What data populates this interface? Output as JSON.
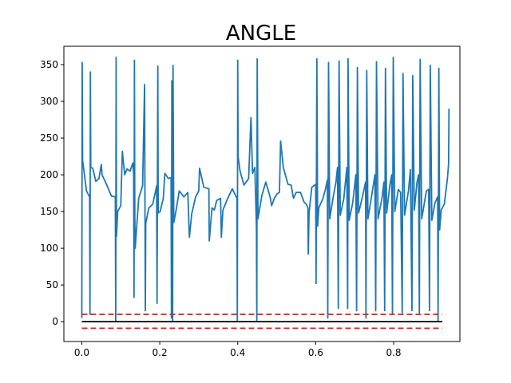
{
  "chart_data": {
    "type": "line",
    "title": "ANGLE",
    "xlabel": "",
    "ylabel": "",
    "xlim": [
      -0.046,
      0.97
    ],
    "ylim": [
      -27,
      375
    ],
    "xticks": [
      {
        "value": 0.0,
        "label": "0.0"
      },
      {
        "value": 0.2,
        "label": "0.2"
      },
      {
        "value": 0.4,
        "label": "0.4"
      },
      {
        "value": 0.6,
        "label": "0.6"
      },
      {
        "value": 0.8,
        "label": "0.8"
      }
    ],
    "yticks": [
      {
        "value": 0,
        "label": "0"
      },
      {
        "value": 50,
        "label": "50"
      },
      {
        "value": 100,
        "label": "100"
      },
      {
        "value": 150,
        "label": "150"
      },
      {
        "value": 200,
        "label": "200"
      },
      {
        "value": 250,
        "label": "250"
      },
      {
        "value": 300,
        "label": "300"
      },
      {
        "value": 350,
        "label": "350"
      }
    ],
    "grid": false,
    "colors": {
      "series": "#1f77b4",
      "baseline": "#000000",
      "threshold": "#d62728"
    },
    "series": [
      {
        "style": "solid",
        "points": [
          [
            0.0,
            5
          ],
          [
            0.001,
            353
          ],
          [
            0.002,
            220
          ],
          [
            0.012,
            178
          ],
          [
            0.02,
            170
          ],
          [
            0.021,
            10
          ],
          [
            0.022,
            340
          ],
          [
            0.023,
            210
          ],
          [
            0.028,
            209
          ],
          [
            0.036,
            191
          ],
          [
            0.044,
            195
          ],
          [
            0.05,
            214
          ],
          [
            0.052,
            200
          ],
          [
            0.065,
            185
          ],
          [
            0.076,
            171
          ],
          [
            0.086,
            170
          ],
          [
            0.087,
            0
          ],
          [
            0.088,
            360
          ],
          [
            0.089,
            116
          ],
          [
            0.092,
            150
          ],
          [
            0.1,
            158
          ],
          [
            0.104,
            232
          ],
          [
            0.11,
            200
          ],
          [
            0.116,
            208
          ],
          [
            0.124,
            205
          ],
          [
            0.131,
            216
          ],
          [
            0.133,
            200
          ],
          [
            0.134,
            33
          ],
          [
            0.135,
            356
          ],
          [
            0.136,
            140
          ],
          [
            0.137,
            100
          ],
          [
            0.146,
            168
          ],
          [
            0.156,
            185
          ],
          [
            0.161,
            323
          ],
          [
            0.163,
            15
          ],
          [
            0.164,
            134
          ],
          [
            0.172,
            155
          ],
          [
            0.182,
            160
          ],
          [
            0.192,
            185
          ],
          [
            0.193,
            25
          ],
          [
            0.195,
            348
          ],
          [
            0.196,
            148
          ],
          [
            0.201,
            150
          ],
          [
            0.209,
            168
          ],
          [
            0.213,
            202
          ],
          [
            0.222,
            195
          ],
          [
            0.229,
            196
          ],
          [
            0.23,
            5
          ],
          [
            0.231,
            328
          ],
          [
            0.233,
            0
          ],
          [
            0.234,
            349
          ],
          [
            0.236,
            135
          ],
          [
            0.242,
            152
          ],
          [
            0.25,
            178
          ],
          [
            0.262,
            170
          ],
          [
            0.272,
            176
          ],
          [
            0.276,
            115
          ],
          [
            0.282,
            147
          ],
          [
            0.292,
            170
          ],
          [
            0.3,
            178
          ],
          [
            0.302,
            209
          ],
          [
            0.313,
            183
          ],
          [
            0.326,
            181
          ],
          [
            0.327,
            110
          ],
          [
            0.334,
            155
          ],
          [
            0.34,
            152
          ],
          [
            0.346,
            165
          ],
          [
            0.356,
            168
          ],
          [
            0.358,
            115
          ],
          [
            0.362,
            152
          ],
          [
            0.372,
            165
          ],
          [
            0.386,
            181
          ],
          [
            0.398,
            168
          ],
          [
            0.399,
            2
          ],
          [
            0.4,
            356
          ],
          [
            0.401,
            225
          ],
          [
            0.406,
            205
          ],
          [
            0.416,
            186
          ],
          [
            0.428,
            195
          ],
          [
            0.434,
            278
          ],
          [
            0.438,
            202
          ],
          [
            0.444,
            210
          ],
          [
            0.448,
            128
          ],
          [
            0.449,
            2
          ],
          [
            0.45,
            358
          ],
          [
            0.452,
            140
          ],
          [
            0.462,
            172
          ],
          [
            0.472,
            190
          ],
          [
            0.483,
            170
          ],
          [
            0.487,
            158
          ],
          [
            0.494,
            168
          ],
          [
            0.501,
            174
          ],
          [
            0.507,
            176
          ],
          [
            0.51,
            246
          ],
          [
            0.517,
            210
          ],
          [
            0.529,
            187
          ],
          [
            0.537,
            186
          ],
          [
            0.543,
            168
          ],
          [
            0.55,
            176
          ],
          [
            0.561,
            176
          ],
          [
            0.57,
            163
          ],
          [
            0.576,
            160
          ],
          [
            0.58,
            155
          ],
          [
            0.581,
            92
          ],
          [
            0.583,
            148
          ],
          [
            0.59,
            183
          ],
          [
            0.6,
            187
          ],
          [
            0.601,
            52
          ],
          [
            0.603,
            358
          ],
          [
            0.605,
            130
          ],
          [
            0.608,
            155
          ],
          [
            0.618,
            167
          ],
          [
            0.625,
            180
          ],
          [
            0.63,
            193
          ],
          [
            0.631,
            5
          ],
          [
            0.633,
            353
          ],
          [
            0.636,
            140
          ],
          [
            0.645,
            170
          ],
          [
            0.652,
            190
          ],
          [
            0.656,
            210
          ],
          [
            0.658,
            18
          ],
          [
            0.66,
            355
          ],
          [
            0.663,
            145
          ],
          [
            0.672,
            167
          ],
          [
            0.68,
            210
          ],
          [
            0.682,
            18
          ],
          [
            0.683,
            358
          ],
          [
            0.686,
            138
          ],
          [
            0.695,
            162
          ],
          [
            0.703,
            200
          ],
          [
            0.705,
            15
          ],
          [
            0.707,
            346
          ],
          [
            0.71,
            148
          ],
          [
            0.72,
            170
          ],
          [
            0.728,
            190
          ],
          [
            0.729,
            5
          ],
          [
            0.731,
            342
          ],
          [
            0.734,
            140
          ],
          [
            0.745,
            176
          ],
          [
            0.752,
            200
          ],
          [
            0.754,
            15
          ],
          [
            0.756,
            354
          ],
          [
            0.76,
            140
          ],
          [
            0.77,
            168
          ],
          [
            0.775,
            190
          ],
          [
            0.777,
            15
          ],
          [
            0.779,
            345
          ],
          [
            0.782,
            148
          ],
          [
            0.79,
            185
          ],
          [
            0.795,
            200
          ],
          [
            0.797,
            10
          ],
          [
            0.799,
            360
          ],
          [
            0.803,
            150
          ],
          [
            0.812,
            180
          ],
          [
            0.818,
            176
          ],
          [
            0.822,
            12
          ],
          [
            0.824,
            338
          ],
          [
            0.828,
            145
          ],
          [
            0.838,
            178
          ],
          [
            0.843,
            207
          ],
          [
            0.847,
            15
          ],
          [
            0.849,
            335
          ],
          [
            0.853,
            152
          ],
          [
            0.86,
            190
          ],
          [
            0.864,
            200
          ],
          [
            0.866,
            12
          ],
          [
            0.868,
            357
          ],
          [
            0.872,
            140
          ],
          [
            0.884,
            178
          ],
          [
            0.89,
            180
          ],
          [
            0.892,
            15
          ],
          [
            0.894,
            349
          ],
          [
            0.898,
            138
          ],
          [
            0.906,
            162
          ],
          [
            0.913,
            170
          ],
          [
            0.914,
            0
          ],
          [
            0.916,
            345
          ],
          [
            0.918,
            125
          ],
          [
            0.922,
            152
          ],
          [
            0.93,
            160
          ],
          [
            0.938,
            195
          ],
          [
            0.941,
            215
          ],
          [
            0.942,
            290
          ]
        ]
      },
      {
        "style": "solid",
        "points": [
          [
            0.0,
            0
          ],
          [
            0.925,
            0
          ]
        ]
      },
      {
        "style": "dashed",
        "points": [
          [
            0.0,
            10
          ],
          [
            0.925,
            10
          ]
        ]
      },
      {
        "style": "dashed",
        "points": [
          [
            0.0,
            -9
          ],
          [
            0.925,
            -9
          ]
        ]
      }
    ]
  }
}
